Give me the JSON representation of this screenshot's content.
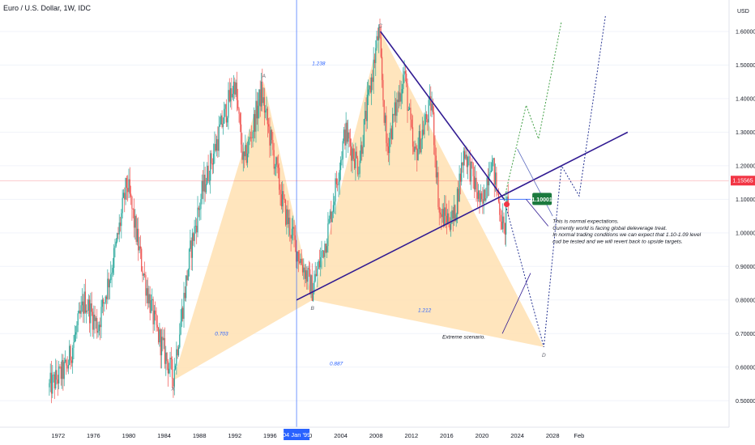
{
  "header": {
    "title": "Euro / U.S. Dollar, 1W, IDC",
    "currency": "USD"
  },
  "colors": {
    "up": "#26a69a",
    "down": "#ef5350",
    "pattern_fill": "#ffe0b2",
    "trendline": "#311b92",
    "projection_green": "#43a047",
    "projection_blue": "#283593",
    "price_tag": "#f23645",
    "target_tag": "#1b7a3e",
    "crosshair": "#2962ff"
  },
  "chart_data": {
    "type": "candlestick",
    "ylim": [
      0.45,
      1.66
    ],
    "y_ticks": [
      "0.50000",
      "0.60000",
      "0.70000",
      "0.80000",
      "0.90000",
      "1.00000",
      "1.10000",
      "1.20000",
      "1.30000",
      "1.40000",
      "1.50000",
      "1.60000"
    ],
    "x_ticks": [
      "1972",
      "1976",
      "1980",
      "1984",
      "1988",
      "1992",
      "1996",
      "2000",
      "2004",
      "2008",
      "2012",
      "2016",
      "2020",
      "2024",
      "2028",
      "Feb"
    ],
    "crosshair_label": "04 Jan '99",
    "last_price": "1.15565",
    "target_label": "1.10001",
    "price_path": [
      [
        1971.0,
        0.54
      ],
      [
        1973.0,
        0.6
      ],
      [
        1975.0,
        0.8
      ],
      [
        1976.5,
        0.72
      ],
      [
        1978.5,
        0.95
      ],
      [
        1979.8,
        1.15
      ],
      [
        1981.5,
        0.9
      ],
      [
        1983.0,
        0.72
      ],
      [
        1985.0,
        0.57
      ],
      [
        1987.0,
        0.95
      ],
      [
        1988.3,
        1.12
      ],
      [
        1990.5,
        1.32
      ],
      [
        1992.0,
        1.45
      ],
      [
        1993.0,
        1.2
      ],
      [
        1995.0,
        1.42
      ],
      [
        1997.5,
        1.08
      ],
      [
        1999.0,
        0.95
      ],
      [
        2000.8,
        0.83
      ],
      [
        2002.5,
        1.0
      ],
      [
        2004.5,
        1.3
      ],
      [
        2006.0,
        1.2
      ],
      [
        2008.3,
        1.6
      ],
      [
        2009.2,
        1.25
      ],
      [
        2011.2,
        1.48
      ],
      [
        2012.3,
        1.22
      ],
      [
        2014.3,
        1.39
      ],
      [
        2015.2,
        1.05
      ],
      [
        2016.8,
        1.04
      ],
      [
        2018.0,
        1.25
      ],
      [
        2020.0,
        1.07
      ],
      [
        2021.0,
        1.23
      ],
      [
        2022.5,
        1.0
      ],
      [
        2023.0,
        1.12
      ]
    ],
    "pattern_points": [
      {
        "label": "X",
        "year": 1985.0,
        "price": 0.56
      },
      {
        "label": "A",
        "year": 1995.3,
        "price": 1.45
      },
      {
        "label": "B",
        "year": 2000.8,
        "price": 0.8
      },
      {
        "label": "C",
        "year": 2008.5,
        "price": 1.6
      },
      {
        "label": "D",
        "year": 2027.0,
        "price": 0.66
      }
    ],
    "ratios": [
      {
        "text": "1.238",
        "year": 2001.5,
        "price": 1.5
      },
      {
        "text": "0.703",
        "year": 1990.5,
        "price": 0.695
      },
      {
        "text": "1.212",
        "year": 2013.5,
        "price": 0.765
      },
      {
        "text": "0.887",
        "year": 2003.5,
        "price": 0.605
      }
    ],
    "annotations": {
      "note_lines": [
        "This is normal expectations.",
        "Currently world is facing global deleverage treat.",
        "In normal trading conditions we can expect that 1.10-1.09 level",
        "cud be tested and we will revert back to upside targets."
      ],
      "extreme": "Extreme scenario."
    }
  }
}
